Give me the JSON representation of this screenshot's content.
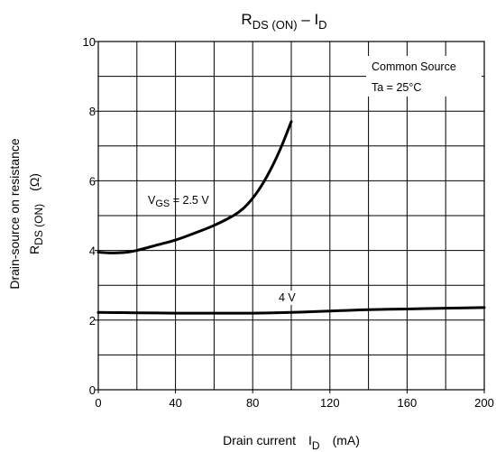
{
  "chart_data": {
    "type": "line",
    "title": {
      "main": "R",
      "main_sub": "DS (ON)",
      "sep": " – I",
      "sep_sub": "D"
    },
    "xlabel": {
      "text": "Drain current",
      "sym": "I",
      "sym_sub": "D",
      "unit": "(mA)"
    },
    "ylabel": {
      "line1": "Drain-source on resistance",
      "sym": "R",
      "sym_sub": "DS (ON)",
      "unit": "(Ω)"
    },
    "xlim": [
      0,
      200
    ],
    "ylim": [
      0,
      10
    ],
    "x_ticks": [
      0,
      40,
      80,
      120,
      160,
      200
    ],
    "y_ticks": [
      0,
      2,
      4,
      6,
      8,
      10
    ],
    "x_ticks_text": [
      "0",
      "40",
      "80",
      "120",
      "160",
      "200"
    ],
    "y_ticks_text": [
      "0",
      "2",
      "4",
      "6",
      "8",
      "10"
    ],
    "x_grid_step": 20,
    "y_grid_step": 1,
    "grid": true,
    "conditions": {
      "line1": "Common Source",
      "line2": "Ta = 25°C"
    },
    "series": [
      {
        "name": "VGS = 2.5 V",
        "label": {
          "pre": "V",
          "sub": "GS",
          "post": " = 2.5 V"
        },
        "x": [
          0,
          5,
          10,
          15,
          20,
          30,
          40,
          50,
          60,
          70,
          75,
          80,
          85,
          90,
          95,
          100
        ],
        "y": [
          3.95,
          3.93,
          3.93,
          3.95,
          4.0,
          4.15,
          4.3,
          4.5,
          4.72,
          5.0,
          5.2,
          5.5,
          5.9,
          6.4,
          7.0,
          7.7
        ]
      },
      {
        "name": "4 V",
        "label": {
          "pre": "4 V",
          "sub": "",
          "post": ""
        },
        "x": [
          0,
          20,
          40,
          60,
          80,
          100,
          120,
          140,
          160,
          180,
          200
        ],
        "y": [
          2.22,
          2.21,
          2.2,
          2.2,
          2.2,
          2.22,
          2.26,
          2.3,
          2.32,
          2.34,
          2.36
        ]
      }
    ]
  }
}
